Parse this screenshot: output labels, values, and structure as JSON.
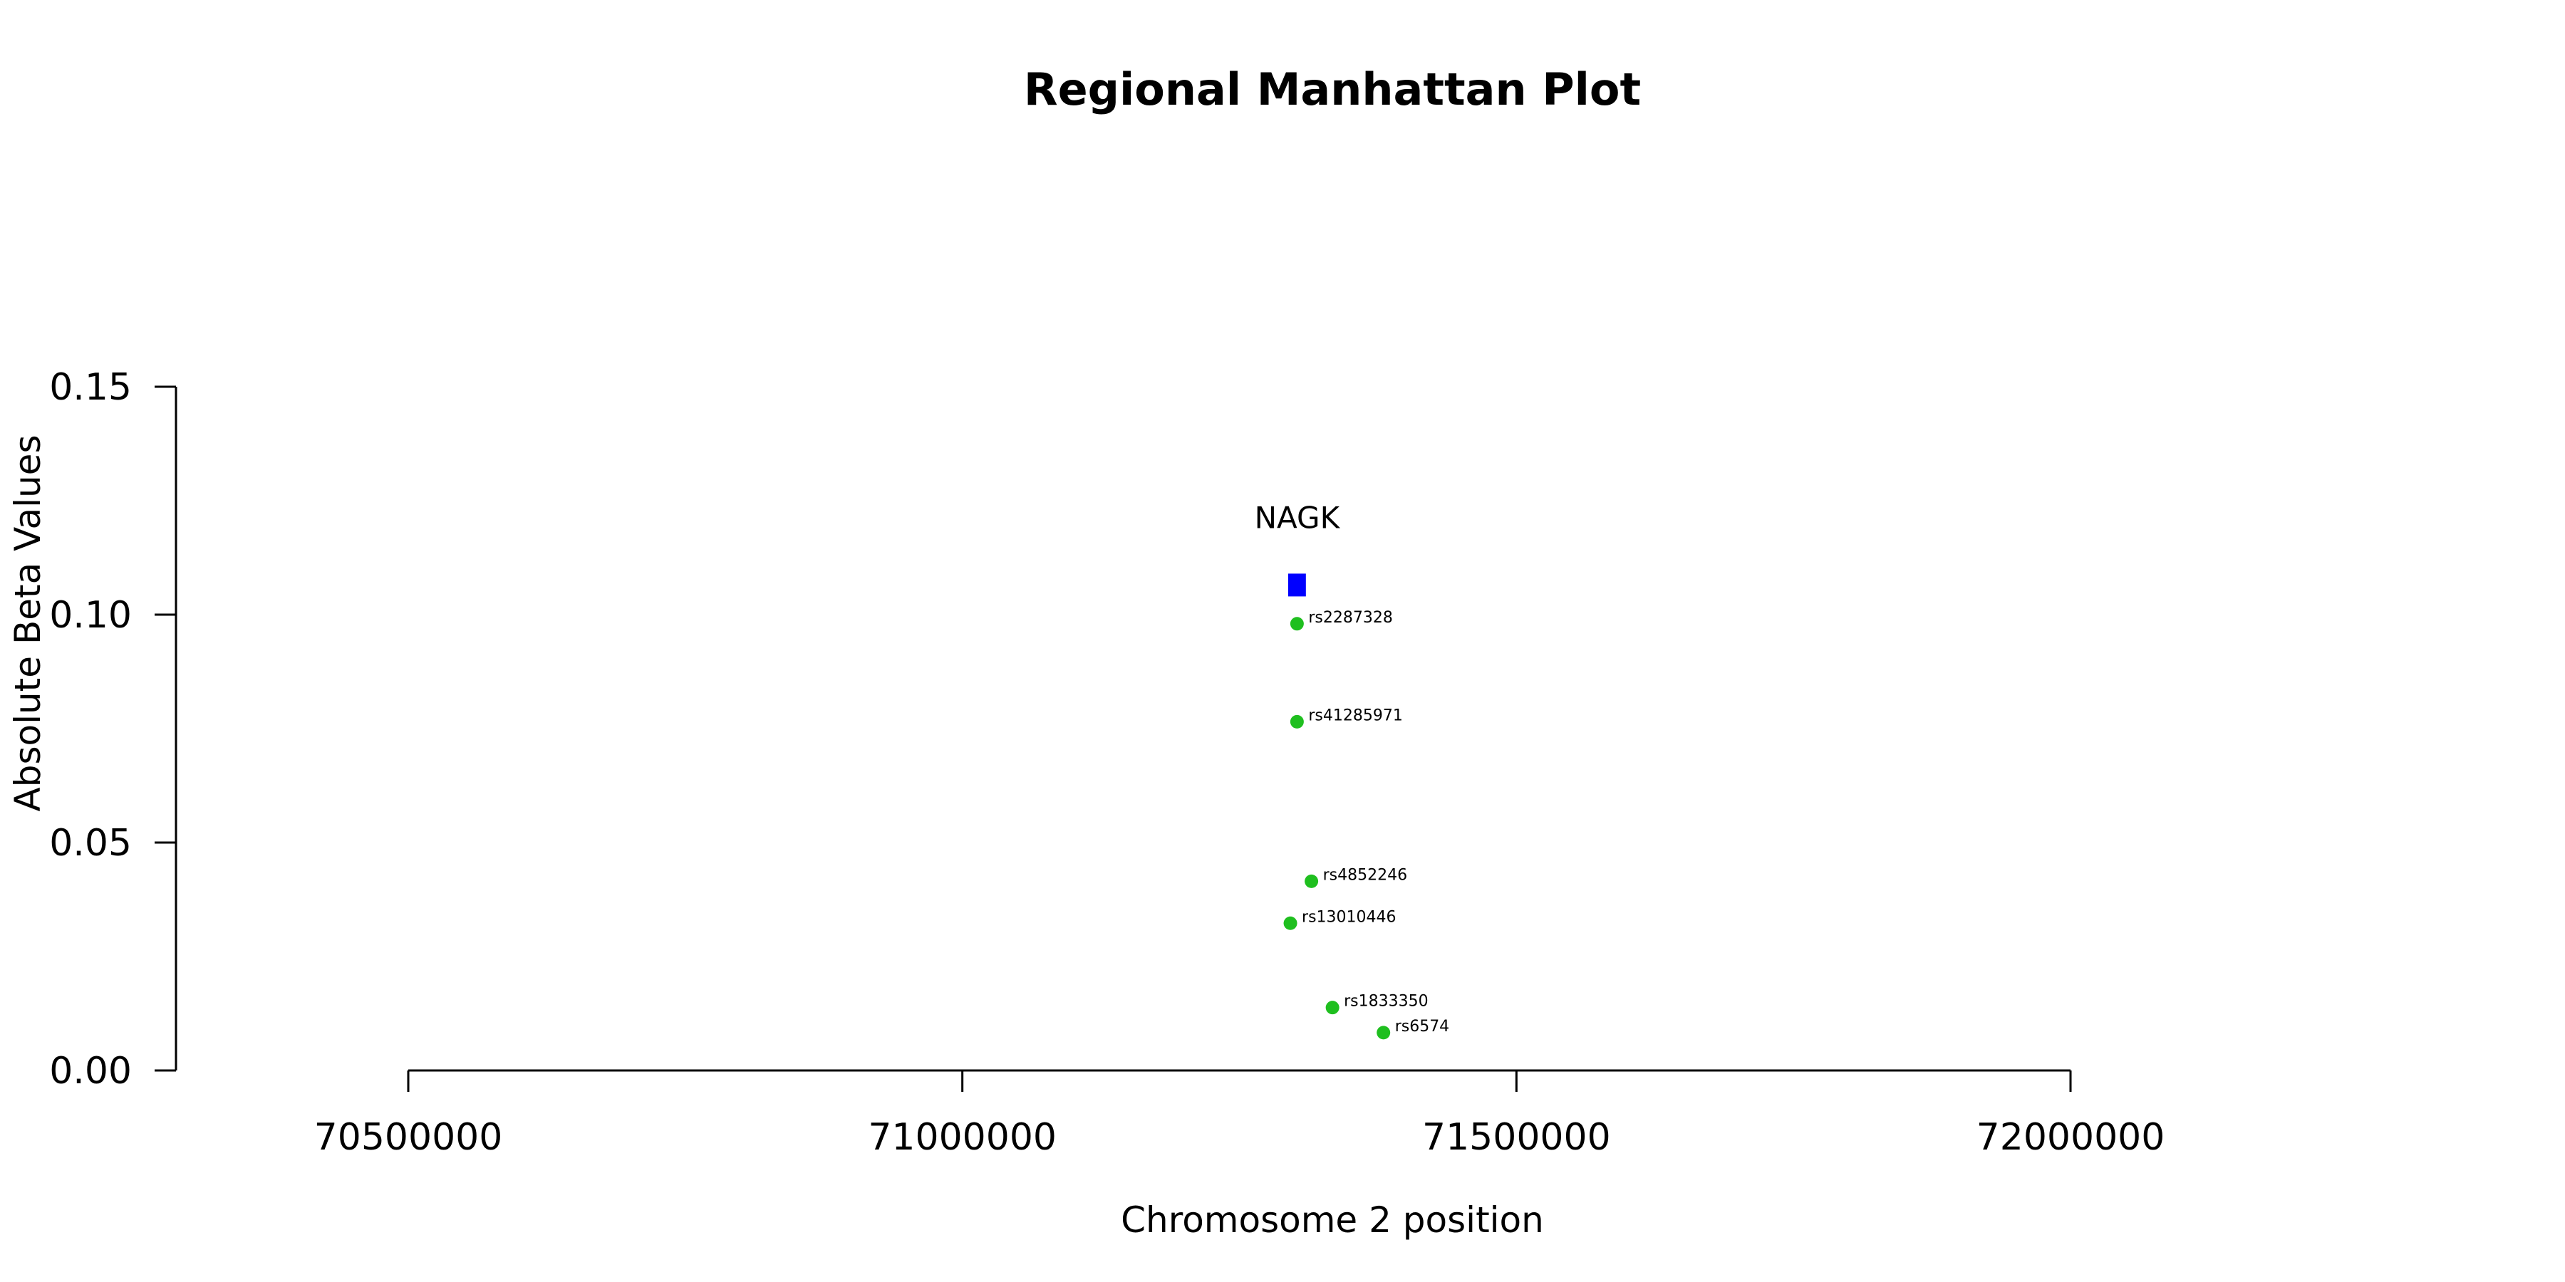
{
  "chart_data": {
    "type": "scatter",
    "title": "Regional Manhattan Plot",
    "xlabel": "Chromosome 2 position",
    "ylabel": "Absolute Beta Values",
    "xlim": [
      70500000,
      72000000
    ],
    "ylim": [
      0,
      0.15
    ],
    "x_ticks": [
      70500000,
      71000000,
      71500000,
      72000000
    ],
    "x_tick_labels": [
      "70500000",
      "71000000",
      "71500000",
      "72000000"
    ],
    "y_ticks": [
      0,
      0.05,
      0.1,
      0.15
    ],
    "y_tick_labels": [
      "0.00",
      "0.05",
      "0.10",
      "0.15"
    ],
    "point_color": "#1fbf1f",
    "gene_color": "#0000ff",
    "points": [
      {
        "label": "rs2287328",
        "x": 71302000,
        "y": 0.098
      },
      {
        "label": "rs41285971",
        "x": 71302000,
        "y": 0.0765
      },
      {
        "label": "rs4852246",
        "x": 71315000,
        "y": 0.0415
      },
      {
        "label": "rs13010446",
        "x": 71296000,
        "y": 0.0323
      },
      {
        "label": "rs1833350",
        "x": 71334000,
        "y": 0.0138
      },
      {
        "label": "rs6574",
        "x": 71380000,
        "y": 0.0083
      }
    ],
    "genes": [
      {
        "name": "NAGK",
        "start": 71294000,
        "end": 71310000,
        "y": 0.1065
      }
    ]
  }
}
